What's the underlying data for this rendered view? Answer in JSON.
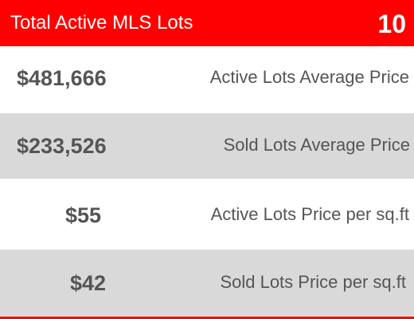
{
  "header": {
    "title": "Total Active MLS Lots",
    "count": "10"
  },
  "rows": [
    {
      "price": "$481,666",
      "label": "Active Lots Average Price"
    },
    {
      "price": "$233,526",
      "label": "Sold Lots Average Price"
    },
    {
      "price": "$55",
      "label": "Active Lots Price per sq.ft"
    },
    {
      "price": "$42",
      "label": "Sold Lots Price per sq.ft"
    }
  ],
  "colors": {
    "accent": "#ff0000",
    "row_alt": "#d9d9d9",
    "text": "#555555",
    "header_text": "#ffffff"
  }
}
